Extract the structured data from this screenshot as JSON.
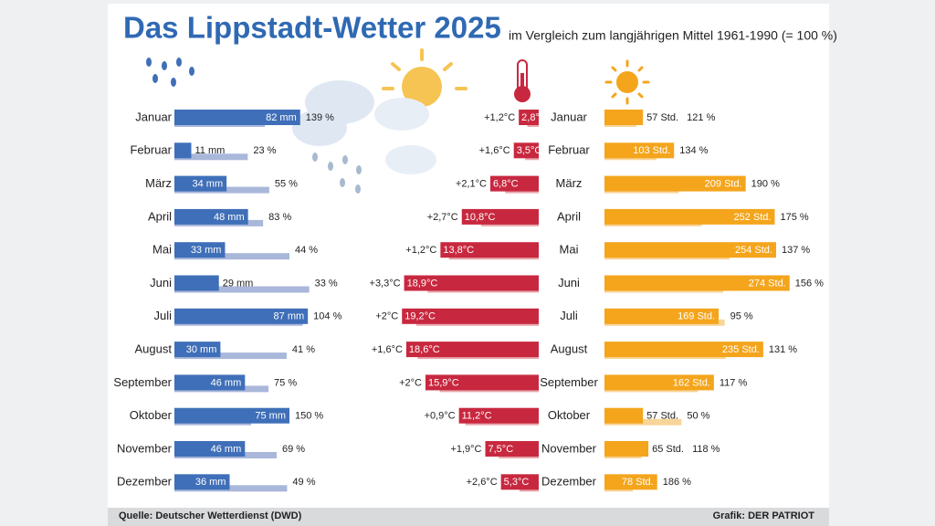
{
  "title": "Das Lippstadt-Wetter 2025",
  "subtitle": "im Vergleich zum langjährigen Mittel 1961-1990 (= 100 %)",
  "source": "Quelle: Deutscher Wetterdienst (DWD)",
  "credit": "Grafik: DER PATRIOT",
  "chart_data": [
    {
      "type": "bar",
      "orientation": "horizontal",
      "anchor": "left",
      "categories": [
        "Januar",
        "Februar",
        "März",
        "April",
        "Mai",
        "Juni",
        "Juli",
        "August",
        "September",
        "Oktober",
        "November",
        "Dezember"
      ],
      "values": [
        82,
        11,
        34,
        48,
        33,
        29,
        87,
        30,
        46,
        75,
        46,
        36
      ],
      "value_labels": [
        "82 mm",
        "11 mm",
        "34 mm",
        "48 mm",
        "33 mm",
        "29 mm",
        "87 mm",
        "30 mm",
        "46 mm",
        "75 mm",
        "46 mm",
        "36 mm"
      ],
      "color": "#3f6fb8",
      "comparison": {
        "kind": "percent",
        "values": [
          139,
          23,
          55,
          83,
          44,
          33,
          104,
          41,
          75,
          150,
          69,
          49
        ],
        "value_labels": [
          "139 %",
          "23 %",
          "55 %",
          "83 %",
          "44 %",
          "33 %",
          "104 %",
          "41 %",
          "75 %",
          "150 %",
          "69 %",
          "49 %"
        ],
        "color": "#a9b7da"
      }
    },
    {
      "type": "bar",
      "orientation": "horizontal",
      "anchor": "right",
      "values": [
        2.8,
        3.5,
        6.8,
        10.8,
        13.8,
        18.9,
        19.2,
        18.6,
        15.9,
        11.2,
        7.5,
        5.3
      ],
      "value_labels": [
        "2,8°C",
        "3,5°C",
        "6,8°C",
        "10,8°C",
        "13,8°C",
        "18,9°C",
        "19,2°C",
        "18,6°C",
        "15,9°C",
        "11,2°C",
        "7,5°C",
        "5,3°C"
      ],
      "color": "#c8283f",
      "comparison": {
        "kind": "anomaly",
        "values": [
          1.2,
          1.6,
          2.1,
          2.7,
          1.2,
          3.3,
          2,
          1.6,
          2,
          0.9,
          1.9,
          2.6
        ],
        "value_labels": [
          "+1,2°C",
          "+1,6°C",
          "+2,1°C",
          "+2,7°C",
          "+1,2°C",
          "+3,3°C",
          "+2°C",
          "+1,6°C",
          "+2°C",
          "+0,9°C",
          "+1,9°C",
          "+2,6°C"
        ],
        "color": "#e8a7ad"
      }
    },
    {
      "type": "bar",
      "orientation": "horizontal",
      "anchor": "left",
      "categories": [
        "Januar",
        "Februar",
        "März",
        "April",
        "Mai",
        "Juni",
        "Juli",
        "August",
        "September",
        "Oktober",
        "November",
        "Dezember"
      ],
      "values": [
        57,
        103,
        209,
        252,
        254,
        274,
        169,
        235,
        162,
        57,
        65,
        78
      ],
      "value_labels": [
        "57 Std.",
        "103 Std.",
        "209 Std.",
        "252 Std.",
        "254 Std.",
        "274 Std.",
        "169 Std.",
        "235 Std.",
        "162 Std.",
        "57 Std.",
        "65 Std.",
        "78 Std."
      ],
      "color": "#f4a51c",
      "comparison": {
        "kind": "percent",
        "values": [
          121,
          134,
          190,
          175,
          137,
          156,
          95,
          131,
          117,
          50,
          118,
          186
        ],
        "value_labels": [
          "121 %",
          "134 %",
          "190 %",
          "175 %",
          "137 %",
          "156 %",
          "95 %",
          "131 %",
          "117 %",
          "50 %",
          "118 %",
          "186 %"
        ],
        "color": "#f8d59a"
      }
    }
  ]
}
